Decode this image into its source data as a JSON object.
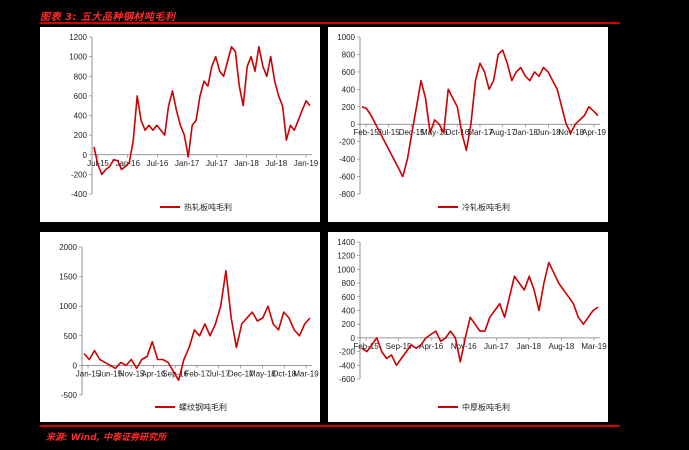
{
  "header": {
    "title": "图表 3: 五大品种钢材吨毛利",
    "accent_color": "#d20000"
  },
  "footer": {
    "source": "来源: Wind, 中泰证券研究所"
  },
  "line_color": "#cc0000",
  "chart_data": [
    {
      "type": "line",
      "series": [
        {
          "name": "热轧板吨毛利",
          "values": [
            80,
            -100,
            -200,
            -150,
            -120,
            -50,
            -60,
            -150,
            -120,
            -80,
            150,
            600,
            350,
            250,
            300,
            250,
            300,
            250,
            200,
            500,
            650,
            450,
            300,
            200,
            -20,
            300,
            350,
            600,
            750,
            700,
            900,
            1000,
            850,
            800,
            950,
            1100,
            1050,
            700,
            500,
            900,
            1000,
            850,
            1100,
            900,
            800,
            1000,
            750,
            600,
            500,
            150,
            300,
            250,
            350,
            450,
            550,
            500
          ]
        }
      ],
      "x_ticks": [
        "Jul-15",
        "Jan-16",
        "Jul-16",
        "Jan-17",
        "Jul-17",
        "Jan-18",
        "Jul-18",
        "Jan-19"
      ],
      "y_ticks": [
        "1200",
        "1000",
        "800",
        "600",
        "400",
        "200",
        "0",
        "-200",
        "-400"
      ],
      "ylim": [
        -400,
        1200
      ]
    },
    {
      "type": "line",
      "series": [
        {
          "name": "冷轧板吨毛利",
          "values": [
            200,
            180,
            100,
            0,
            -100,
            -200,
            -300,
            -400,
            -500,
            -600,
            -400,
            -100,
            200,
            500,
            300,
            -100,
            50,
            0,
            -100,
            400,
            300,
            200,
            -100,
            -300,
            0,
            500,
            700,
            600,
            400,
            500,
            800,
            850,
            700,
            500,
            600,
            650,
            550,
            500,
            600,
            550,
            650,
            600,
            500,
            400,
            200,
            0,
            -100,
            0,
            50,
            100,
            200,
            150,
            100
          ]
        }
      ],
      "x_ticks": [
        "Feb-15",
        "Jul-15",
        "Dec-15",
        "May-16",
        "Oct-16",
        "Mar-17",
        "Aug-17",
        "Jan-18",
        "Jun-18",
        "Nov-18",
        "Apr-19"
      ],
      "y_ticks": [
        "1000",
        "800",
        "600",
        "400",
        "200",
        "0",
        "-200",
        "-400",
        "-600",
        "-800"
      ],
      "ylim": [
        -800,
        1000
      ]
    },
    {
      "type": "line",
      "series": [
        {
          "name": "螺纹钢吨毛利",
          "values": [
            200,
            100,
            250,
            100,
            50,
            0,
            -50,
            50,
            0,
            100,
            -50,
            100,
            150,
            400,
            100,
            100,
            50,
            -100,
            -250,
            100,
            300,
            600,
            500,
            700,
            500,
            700,
            1000,
            1600,
            800,
            300,
            700,
            800,
            900,
            750,
            800,
            1000,
            700,
            600,
            900,
            800,
            600,
            500,
            700,
            800
          ]
        }
      ],
      "x_ticks": [
        "Jan-15",
        "Jun-15",
        "Nov-15",
        "Apr-16",
        "Sep-16",
        "Feb-17",
        "Jul-17",
        "Dec-17",
        "May-18",
        "Oct-18",
        "Mar-19"
      ],
      "y_ticks": [
        "2000",
        "1500",
        "1000",
        "500",
        "0",
        "-500"
      ],
      "ylim": [
        -500,
        2000
      ]
    },
    {
      "type": "line",
      "series": [
        {
          "name": "中厚板吨毛利",
          "values": [
            -150,
            -200,
            -100,
            0,
            -200,
            -300,
            -250,
            -400,
            -300,
            -200,
            -100,
            -150,
            -100,
            0,
            50,
            100,
            -50,
            0,
            100,
            0,
            -350,
            0,
            300,
            200,
            100,
            100,
            300,
            400,
            500,
            300,
            600,
            900,
            800,
            700,
            900,
            700,
            400,
            800,
            1100,
            950,
            800,
            700,
            600,
            500,
            300,
            200,
            300,
            400,
            450
          ]
        }
      ],
      "x_ticks": [
        "Feb-15",
        "Sep-15",
        "Apr-16",
        "Nov-16",
        "Jun-17",
        "Jan-18",
        "Aug-18",
        "Mar-19"
      ],
      "y_ticks": [
        "1400",
        "1200",
        "1000",
        "800",
        "600",
        "400",
        "200",
        "0",
        "-200",
        "-400",
        "-600"
      ],
      "ylim": [
        -600,
        1400
      ]
    }
  ]
}
